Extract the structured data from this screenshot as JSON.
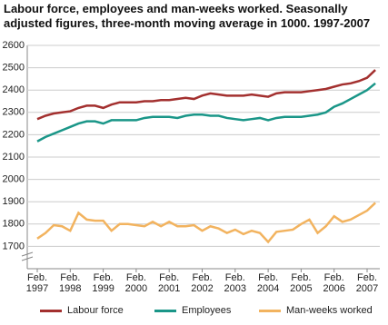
{
  "chart_data": {
    "type": "line",
    "title": "Labour force, employees and man-weeks worked. Seasonally adjusted figures, three-month moving average in 1000. 1997-2007",
    "categories": [
      "Feb. 1997",
      null,
      null,
      null,
      "Feb. 1998",
      null,
      null,
      null,
      "Feb. 1999",
      null,
      null,
      null,
      "Feb. 2000",
      null,
      null,
      null,
      "Feb. 2001",
      null,
      null,
      null,
      "Feb. 2002",
      null,
      null,
      null,
      "Feb. 2003",
      null,
      null,
      null,
      "Feb. 2004",
      null,
      null,
      null,
      "Feb. 2005",
      null,
      null,
      null,
      "Feb. 2006",
      null,
      null,
      null,
      "Feb. 2007",
      null
    ],
    "series": [
      {
        "name": "Labour force",
        "color": "#a3302f",
        "values": [
          2270,
          2285,
          2295,
          2300,
          2305,
          2320,
          2330,
          2330,
          2320,
          2335,
          2345,
          2345,
          2345,
          2350,
          2350,
          2355,
          2355,
          2360,
          2365,
          2360,
          2375,
          2385,
          2380,
          2375,
          2375,
          2375,
          2380,
          2375,
          2370,
          2385,
          2390,
          2390,
          2390,
          2395,
          2400,
          2405,
          2415,
          2425,
          2430,
          2440,
          2455,
          2490
        ]
      },
      {
        "name": "Employees",
        "color": "#1a9688",
        "values": [
          2170,
          2190,
          2205,
          2220,
          2235,
          2250,
          2260,
          2260,
          2250,
          2265,
          2265,
          2265,
          2265,
          2275,
          2280,
          2280,
          2280,
          2275,
          2285,
          2290,
          2290,
          2285,
          2285,
          2275,
          2270,
          2265,
          2270,
          2275,
          2265,
          2275,
          2280,
          2280,
          2280,
          2285,
          2290,
          2300,
          2325,
          2340,
          2360,
          2380,
          2400,
          2430
        ]
      },
      {
        "name": "Man-weeks worked",
        "color": "#f2b35f",
        "values": [
          1735,
          1760,
          1795,
          1790,
          1770,
          1850,
          1820,
          1815,
          1815,
          1770,
          1800,
          1800,
          1795,
          1790,
          1810,
          1790,
          1810,
          1790,
          1790,
          1795,
          1770,
          1790,
          1780,
          1760,
          1775,
          1755,
          1770,
          1760,
          1720,
          1765,
          1770,
          1775,
          1800,
          1820,
          1760,
          1790,
          1835,
          1810,
          1820,
          1840,
          1860,
          1895
        ]
      }
    ],
    "ylim": [
      1600,
      2600
    ],
    "yticks": [
      1700,
      1800,
      1900,
      2000,
      2100,
      2200,
      2300,
      2400,
      2500,
      2600
    ],
    "grid": true
  }
}
